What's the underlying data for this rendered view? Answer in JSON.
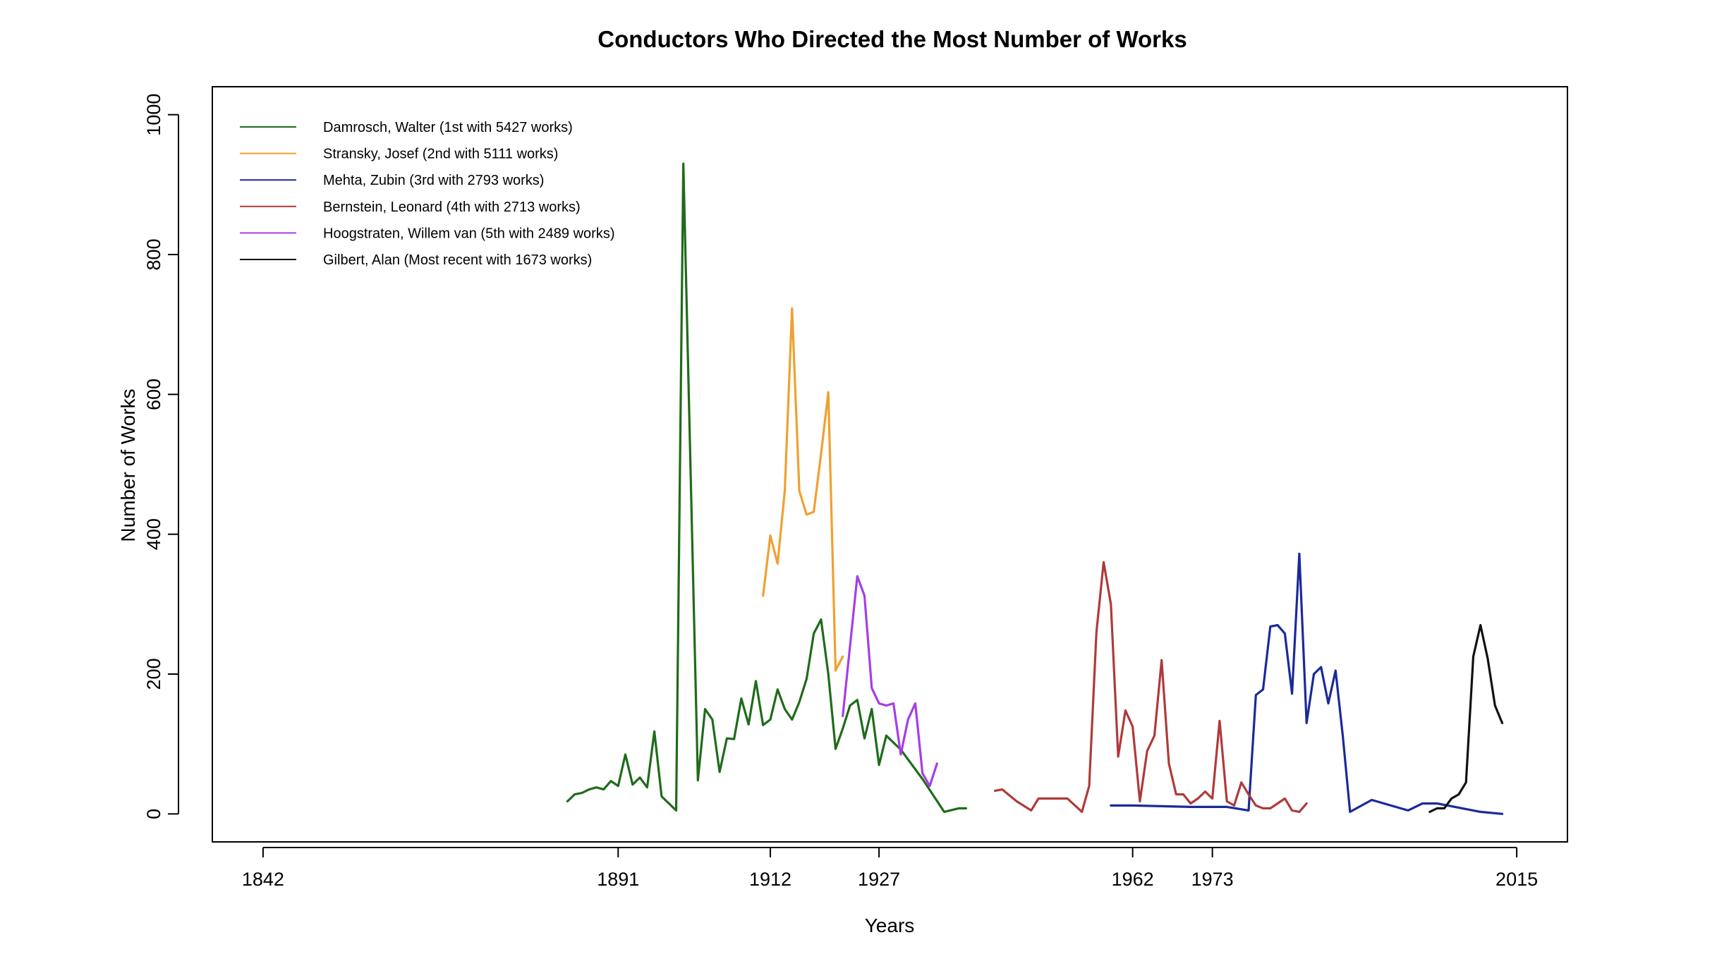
{
  "chart_data": {
    "type": "line",
    "title": "Conductors Who Directed the Most Number of Works",
    "xlabel": "Years",
    "ylabel": "Number of Works",
    "xlim": [
      1835,
      2022
    ],
    "ylim": [
      -40,
      1040
    ],
    "x_ticks": [
      1842,
      1891,
      1912,
      1927,
      1962,
      1973,
      2015
    ],
    "y_ticks": [
      0,
      200,
      400,
      600,
      800,
      1000
    ],
    "grid": false,
    "legend_position": "top-left",
    "series": [
      {
        "name": "Damrosch, Walter (1st with 5427 works)",
        "color": "#1f6b1a",
        "x": [
          1884,
          1885,
          1886,
          1887,
          1888,
          1889,
          1890,
          1891,
          1892,
          1893,
          1894,
          1895,
          1896,
          1897,
          1899,
          1900,
          1902,
          1903,
          1904,
          1905,
          1906,
          1907,
          1908,
          1909,
          1910,
          1911,
          1912,
          1913,
          1914,
          1915,
          1916,
          1917,
          1918,
          1919,
          1920,
          1921,
          1922,
          1923,
          1924,
          1925,
          1926,
          1927,
          1928,
          1930,
          1933,
          1936,
          1938,
          1939
        ],
        "y": [
          18,
          28,
          30,
          35,
          38,
          35,
          47,
          40,
          85,
          42,
          52,
          38,
          118,
          25,
          5,
          930,
          48,
          150,
          135,
          60,
          108,
          107,
          165,
          128,
          190,
          127,
          135,
          178,
          150,
          135,
          160,
          193,
          258,
          278,
          200,
          93,
          122,
          155,
          163,
          108,
          150,
          70,
          112,
          92,
          50,
          3,
          8,
          8
        ]
      },
      {
        "name": "Stransky, Josef (2nd with 5111 works)",
        "color": "#f0a030",
        "x": [
          1911,
          1912,
          1913,
          1914,
          1915,
          1916,
          1917,
          1918,
          1919,
          1920,
          1921,
          1922
        ],
        "y": [
          312,
          398,
          358,
          462,
          723,
          462,
          428,
          432,
          515,
          603,
          205,
          225
        ]
      },
      {
        "name": "Mehta, Zubin (3rd with 2793 works)",
        "color": "#1a2a9a",
        "x": [
          1959,
          1962,
          1966,
          1970,
          1975,
          1978,
          1979,
          1980,
          1981,
          1982,
          1983,
          1984,
          1985,
          1986,
          1987,
          1988,
          1989,
          1990,
          1991,
          1992,
          1995,
          2000,
          2002,
          2004,
          2010,
          2013
        ],
        "y": [
          12,
          12,
          11,
          10,
          10,
          5,
          170,
          178,
          268,
          270,
          258,
          172,
          372,
          130,
          200,
          210,
          158,
          205,
          112,
          3,
          20,
          5,
          15,
          15,
          3,
          0
        ]
      },
      {
        "name": "Bernstein, Leonard (4th with 2713 works)",
        "color": "#b03a3a",
        "x": [
          1943,
          1944,
          1946,
          1948,
          1949,
          1952,
          1953,
          1955,
          1956,
          1957,
          1958,
          1959,
          1960,
          1961,
          1962,
          1963,
          1964,
          1965,
          1966,
          1967,
          1968,
          1969,
          1970,
          1971,
          1972,
          1973,
          1974,
          1975,
          1976,
          1977,
          1978,
          1979,
          1980,
          1981,
          1982,
          1983,
          1984,
          1985,
          1986
        ],
        "y": [
          33,
          35,
          18,
          5,
          22,
          22,
          22,
          3,
          40,
          260,
          360,
          300,
          82,
          148,
          125,
          18,
          90,
          112,
          220,
          72,
          28,
          28,
          15,
          22,
          32,
          22,
          133,
          18,
          12,
          45,
          28,
          12,
          8,
          8,
          15,
          22,
          5,
          3,
          15
        ]
      },
      {
        "name": "Hoogstraten, Willem van (5th with 2489 works)",
        "color": "#a63de8",
        "x": [
          1922,
          1924,
          1925,
          1926,
          1927,
          1928,
          1929,
          1930,
          1931,
          1932,
          1933,
          1934,
          1935
        ],
        "y": [
          140,
          340,
          312,
          180,
          158,
          155,
          158,
          85,
          135,
          158,
          58,
          40,
          72
        ]
      },
      {
        "name": "Gilbert, Alan (Most recent with 1673 works)",
        "color": "#111111",
        "x": [
          2003,
          2004,
          2005,
          2006,
          2007,
          2008,
          2009,
          2010,
          2011,
          2012,
          2013
        ],
        "y": [
          3,
          8,
          8,
          22,
          28,
          45,
          225,
          270,
          222,
          155,
          130
        ]
      }
    ]
  }
}
